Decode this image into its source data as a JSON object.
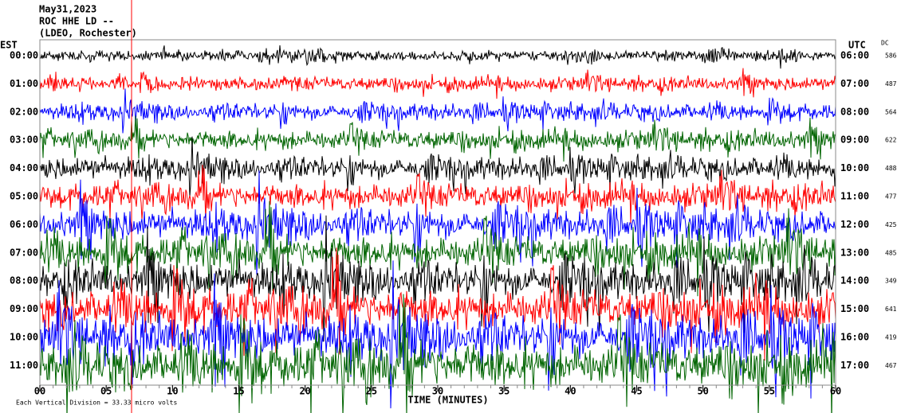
{
  "chart_data": {
    "type": "helicorder",
    "header": [
      "May31,2023",
      "ROC HHE LD --",
      "(LDEO, Rochester)"
    ],
    "left_axis_label": "EST",
    "right_axis_label": "UTC",
    "dc_label": "DC",
    "rows_local": [
      "00:00",
      "01:00",
      "02:00",
      "03:00",
      "04:00",
      "05:00",
      "06:00",
      "07:00",
      "08:00",
      "09:00",
      "10:00",
      "11:00"
    ],
    "rows_utc": [
      "06:00",
      "07:00",
      "08:00",
      "09:00",
      "10:00",
      "11:00",
      "12:00",
      "13:00",
      "14:00",
      "15:00",
      "16:00",
      "17:00"
    ],
    "dc": [
      586,
      487,
      564,
      622,
      488,
      477,
      425,
      485,
      349,
      641,
      419,
      467
    ],
    "colors": [
      "#000000",
      "#ff0000",
      "#0000ff",
      "#006400"
    ],
    "xlim": [
      0,
      60
    ],
    "xticks": [
      {
        "value": 0,
        "label": "00"
      },
      {
        "value": 5,
        "label": "05"
      },
      10,
      15,
      20,
      25,
      30,
      35,
      40,
      45,
      50,
      55,
      60
    ],
    "x_label": "TIME (MINUTES)",
    "footer": "Each Vertical Division = 33.33 micro volts"
  }
}
